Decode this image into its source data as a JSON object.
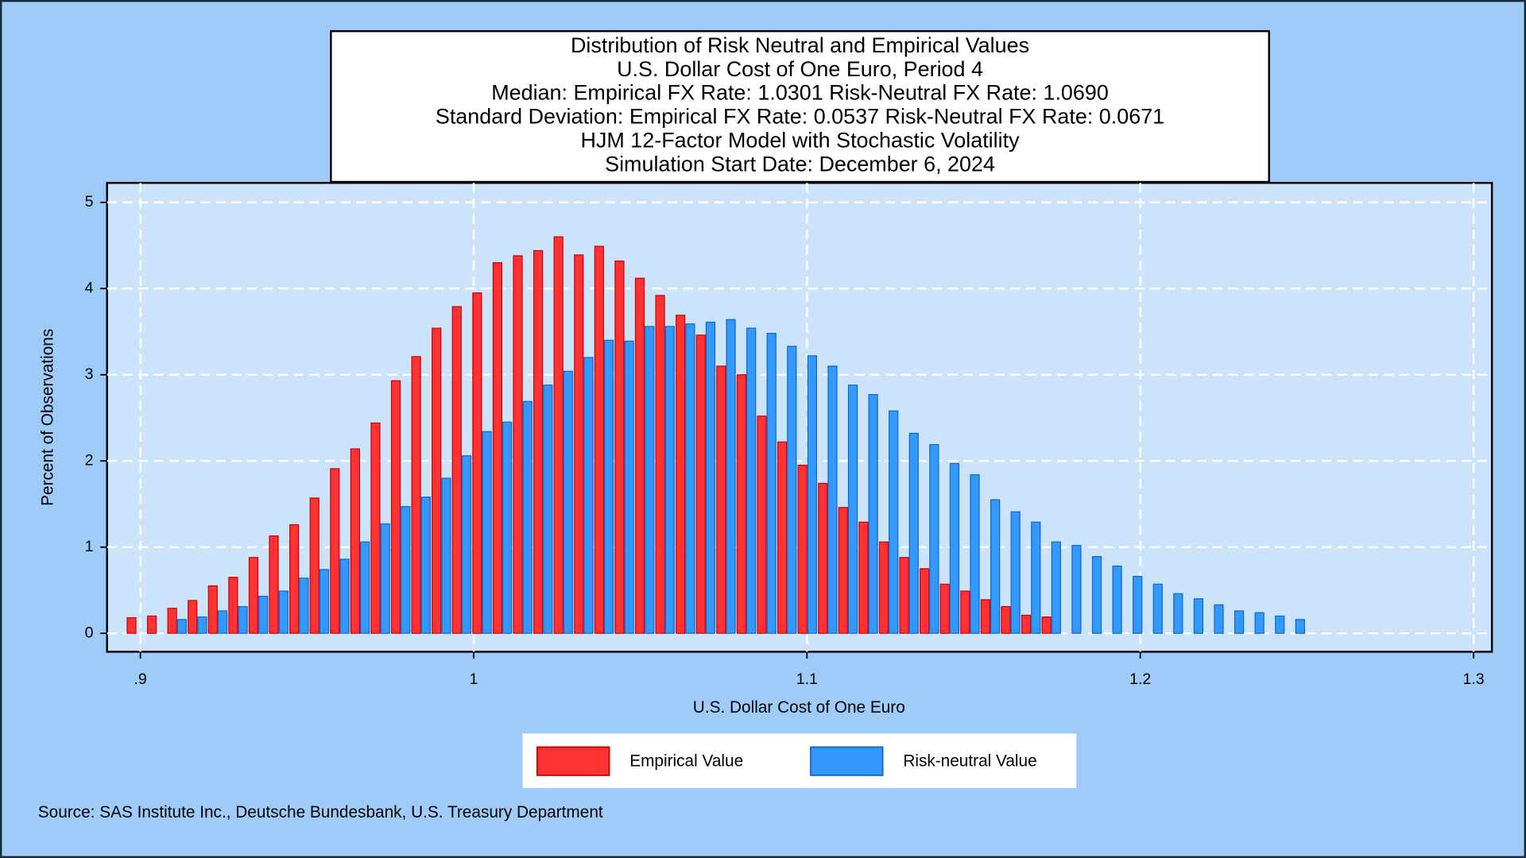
{
  "chart_data": {
    "type": "bar",
    "title": [
      "Distribution of Risk Neutral and Empirical Values",
      "U.S. Dollar Cost of One Euro, Period 4",
      "Median: Empirical FX Rate:  1.0301   Risk-Neutral FX Rate:  1.0690",
      "Standard Deviation: Empirical FX Rate:  0.0537   Risk-Neutral FX Rate:  0.0671",
      "HJM 12-Factor Model with Stochastic Volatility",
      "Simulation Start Date: December 6, 2024"
    ],
    "xlabel": "U.S. Dollar Cost of One Euro",
    "ylabel": "Percent of Observations",
    "source": "Source: SAS Institute Inc., Deutsche Bundesbank, U.S. Treasury Department",
    "x": [
      0.8988,
      0.9049,
      0.911,
      0.9171,
      0.9232,
      0.9293,
      0.9354,
      0.9415,
      0.9476,
      0.9537,
      0.9598,
      0.9659,
      0.972,
      0.9781,
      0.9842,
      0.9903,
      0.9964,
      1.0025,
      1.0086,
      1.0147,
      1.0208,
      1.0269,
      1.033,
      1.0391,
      1.0452,
      1.0513,
      1.0574,
      1.0635,
      1.0696,
      1.0757,
      1.0818,
      1.0879,
      1.094,
      1.1001,
      1.1062,
      1.1123,
      1.1184,
      1.1245,
      1.1306,
      1.1367,
      1.1428,
      1.1489,
      1.155,
      1.1611,
      1.1672,
      1.1733,
      1.1794,
      1.1855,
      1.1916,
      1.1977,
      1.2038,
      1.2099,
      1.216,
      1.2221,
      1.2282,
      1.2343,
      1.2404,
      1.2465
    ],
    "series": [
      {
        "name": "Empirical Value",
        "color": "#ff3333",
        "values": [
          0.18,
          0.2,
          0.29,
          0.38,
          0.55,
          0.65,
          0.88,
          1.13,
          1.26,
          1.57,
          1.91,
          2.14,
          2.44,
          2.93,
          3.21,
          3.54,
          3.79,
          3.95,
          4.3,
          4.38,
          4.44,
          4.6,
          4.39,
          4.49,
          4.32,
          4.12,
          3.92,
          3.69,
          3.46,
          3.1,
          3.0,
          2.52,
          2.22,
          1.95,
          1.74,
          1.46,
          1.29,
          1.06,
          0.88,
          0.75,
          0.57,
          0.49,
          0.39,
          0.31,
          0.21,
          0.19,
          null,
          null,
          null,
          null,
          null,
          null,
          null,
          null,
          null,
          null,
          null,
          null
        ]
      },
      {
        "name": "Risk-neutral Value",
        "color": "#3399ff",
        "values": [
          null,
          null,
          0.16,
          0.19,
          0.26,
          0.31,
          0.43,
          0.49,
          0.64,
          0.74,
          0.86,
          1.06,
          1.27,
          1.47,
          1.58,
          1.8,
          2.06,
          2.34,
          2.45,
          2.69,
          2.88,
          3.04,
          3.2,
          3.4,
          3.39,
          3.56,
          3.56,
          3.59,
          3.61,
          3.64,
          3.54,
          3.48,
          3.33,
          3.22,
          3.1,
          2.88,
          2.77,
          2.58,
          2.32,
          2.19,
          1.97,
          1.84,
          1.55,
          1.41,
          1.29,
          1.06,
          1.02,
          0.89,
          0.78,
          0.66,
          0.57,
          0.46,
          0.4,
          0.33,
          0.26,
          0.24,
          0.2,
          0.16
        ]
      }
    ],
    "xlim": [
      0.89,
      1.3055
    ],
    "ylim": [
      -0.214,
      5.226
    ],
    "xticks": [
      {
        "value": 0.9,
        "label": ".9"
      },
      1,
      1.1,
      1.2,
      1.3
    ],
    "yticks": [
      0,
      1,
      2,
      3,
      4,
      5
    ],
    "grid": true
  }
}
